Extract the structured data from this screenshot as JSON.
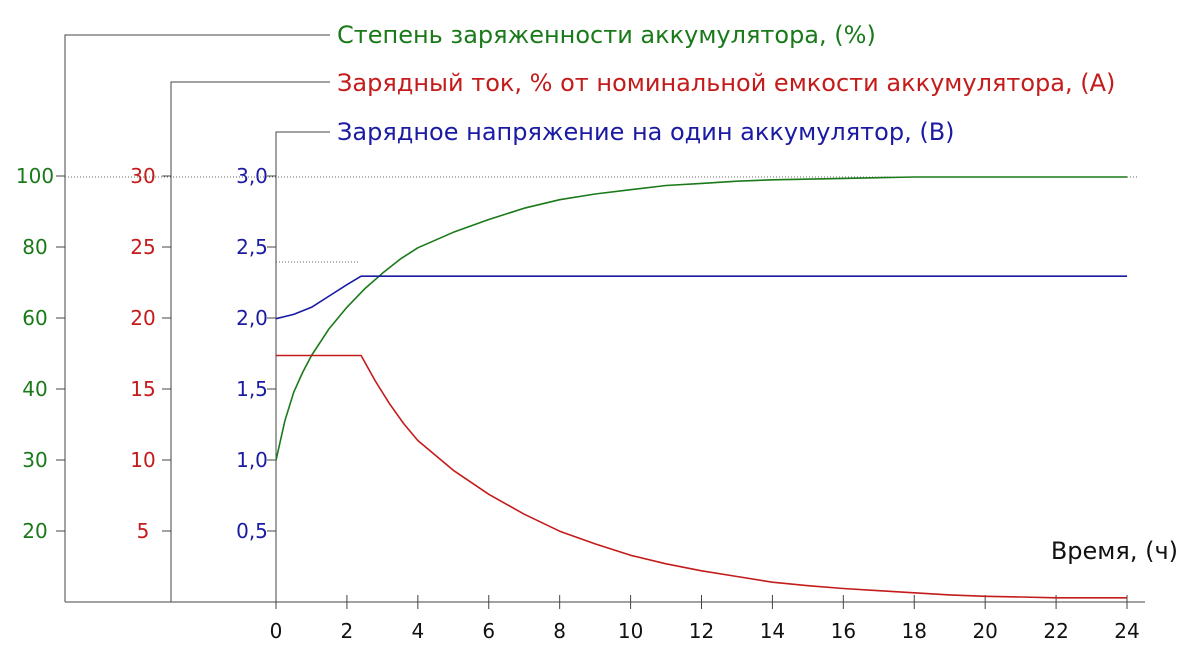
{
  "chart_data": {
    "type": "line",
    "colors": {
      "soc": "#1a7a1a",
      "current": "#c41b1b",
      "voltage": "#1a1aa3",
      "axis": "#444444"
    },
    "titles": {
      "soc": "Степень заряженности аккумулятора, (%)",
      "current": "Зарядный ток, % от номинальной емкости аккумулятора, (А)",
      "voltage": "Зарядное напряжение на один аккумулятор, (В)"
    },
    "xlabel": "Время, (ч)",
    "x_ticks": [
      "0",
      "2",
      "4",
      "6",
      "8",
      "10",
      "12",
      "14",
      "16",
      "18",
      "20",
      "22",
      "24"
    ],
    "xlim": [
      0,
      24
    ],
    "axes": {
      "soc": {
        "ticks": [
          "20",
          "30",
          "40",
          "60",
          "80",
          "100"
        ]
      },
      "current": {
        "ticks": [
          "5",
          "10",
          "15",
          "20",
          "25",
          "30"
        ],
        "ylim": [
          0,
          30
        ]
      },
      "voltage": {
        "ticks": [
          "0,5",
          "1,0",
          "1,5",
          "2,0",
          "2,5",
          "3,0"
        ],
        "ylim": [
          0,
          3.0
        ]
      }
    },
    "series": [
      {
        "key": "soc",
        "axis": "voltage_scale",
        "points": [
          [
            0,
            1.0
          ],
          [
            0.25,
            1.28
          ],
          [
            0.5,
            1.48
          ],
          [
            0.75,
            1.62
          ],
          [
            1,
            1.74
          ],
          [
            1.5,
            1.93
          ],
          [
            2,
            2.08
          ],
          [
            2.5,
            2.21
          ],
          [
            3,
            2.32
          ],
          [
            3.5,
            2.42
          ],
          [
            4,
            2.5
          ],
          [
            5,
            2.61
          ],
          [
            6,
            2.7
          ],
          [
            7,
            2.78
          ],
          [
            8,
            2.84
          ],
          [
            9,
            2.88
          ],
          [
            10,
            2.91
          ],
          [
            11,
            2.94
          ],
          [
            12,
            2.955
          ],
          [
            13,
            2.97
          ],
          [
            14,
            2.98
          ],
          [
            16,
            2.99
          ],
          [
            18,
            3.0
          ],
          [
            20,
            3.0
          ],
          [
            22,
            3.0
          ],
          [
            24,
            3.0
          ]
        ]
      },
      {
        "key": "current",
        "axis": "current",
        "points": [
          [
            0,
            17.4
          ],
          [
            2.4,
            17.4
          ],
          [
            2.8,
            15.6
          ],
          [
            3.2,
            14.0
          ],
          [
            3.6,
            12.6
          ],
          [
            4,
            11.4
          ],
          [
            5,
            9.3
          ],
          [
            6,
            7.6
          ],
          [
            7,
            6.2
          ],
          [
            8,
            5.0
          ],
          [
            9,
            4.1
          ],
          [
            10,
            3.3
          ],
          [
            11,
            2.7
          ],
          [
            12,
            2.2
          ],
          [
            13,
            1.8
          ],
          [
            14,
            1.4
          ],
          [
            15,
            1.15
          ],
          [
            16,
            0.95
          ],
          [
            17,
            0.8
          ],
          [
            18,
            0.65
          ],
          [
            19,
            0.5
          ],
          [
            20,
            0.4
          ],
          [
            21,
            0.35
          ],
          [
            22,
            0.3
          ],
          [
            23,
            0.3
          ],
          [
            24,
            0.3
          ]
        ]
      },
      {
        "key": "voltage",
        "axis": "voltage",
        "points": [
          [
            0,
            2.0
          ],
          [
            0.5,
            2.03
          ],
          [
            1,
            2.08
          ],
          [
            1.5,
            2.16
          ],
          [
            2,
            2.24
          ],
          [
            2.4,
            2.3
          ],
          [
            24,
            2.3
          ]
        ]
      }
    ]
  }
}
